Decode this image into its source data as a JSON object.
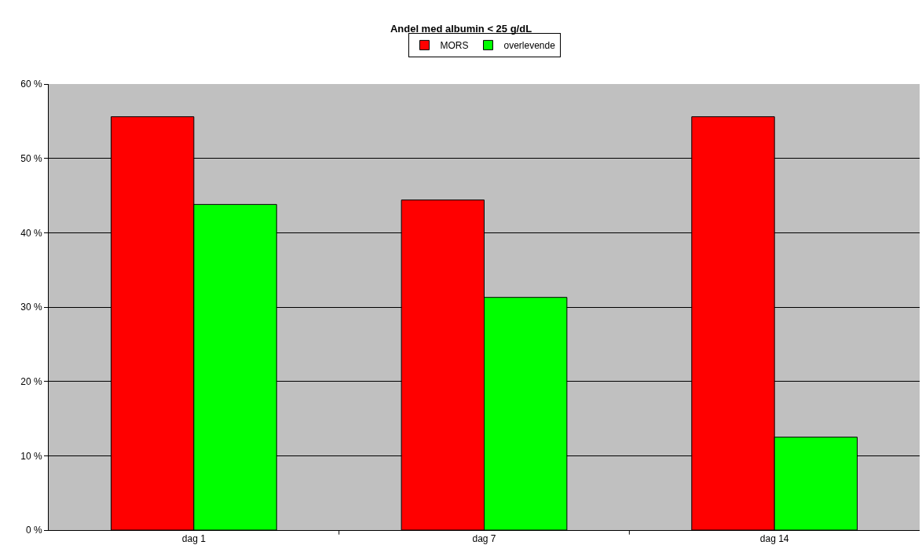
{
  "chart_data": {
    "type": "bar",
    "title": "Andel med albumin < 25 g/dL",
    "categories": [
      "dag 1",
      "dag 7",
      "dag 14"
    ],
    "series": [
      {
        "name": "MORS",
        "color": "#ff0000",
        "values": [
          55.6,
          44.4,
          55.6
        ]
      },
      {
        "name": "overlevende",
        "color": "#00ff00",
        "values": [
          43.8,
          31.3,
          12.5
        ]
      }
    ],
    "ylim": [
      0,
      60
    ],
    "yticks": [
      {
        "value": 0,
        "label": "0 %"
      },
      {
        "value": 10,
        "label": "10 %"
      },
      {
        "value": 20,
        "label": "20 %"
      },
      {
        "value": 30,
        "label": "30 %"
      },
      {
        "value": 40,
        "label": "40 %"
      },
      {
        "value": 50,
        "label": "50 %"
      },
      {
        "value": 60,
        "label": "60 %"
      }
    ],
    "grid": "y",
    "legend": "top"
  }
}
